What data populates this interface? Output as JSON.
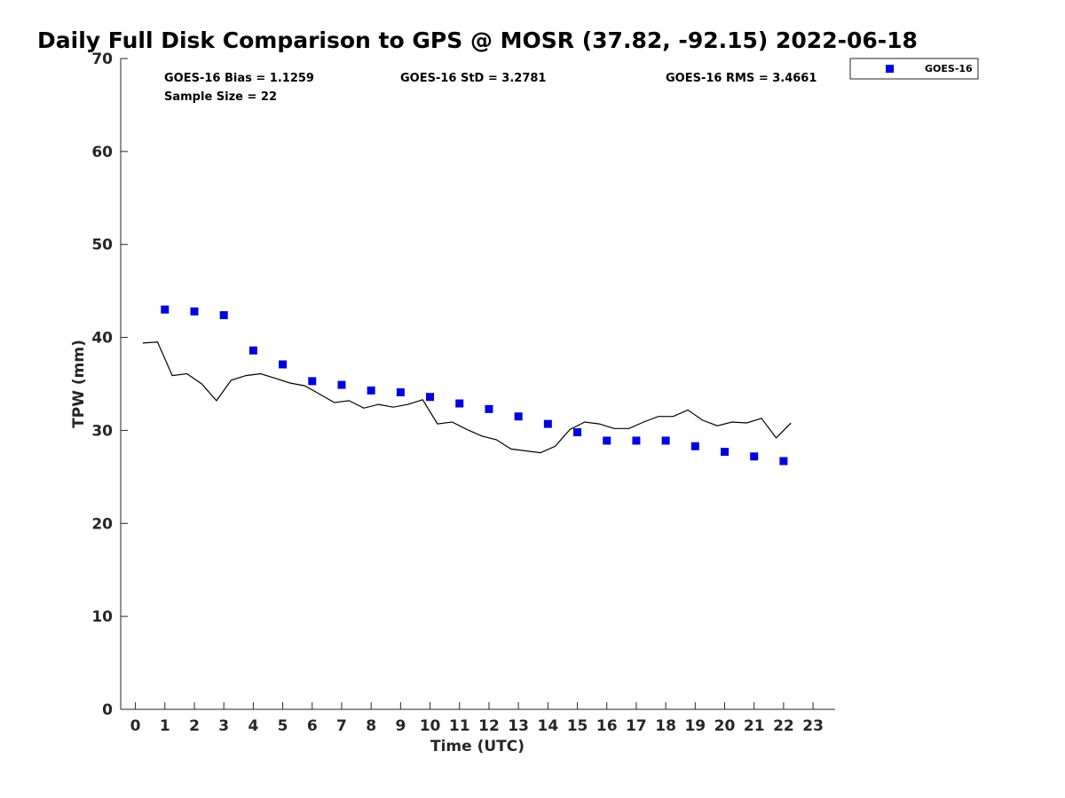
{
  "chart_data": {
    "type": "scatter",
    "title": "Daily Full Disk Comparison to GPS @ MOSR (37.82, -92.15) 2022-06-18",
    "xlabel": "Time (UTC)",
    "ylabel": "TPW (mm)",
    "xlim": [
      -0.5,
      23.75
    ],
    "ylim": [
      0,
      70
    ],
    "x_ticks": [
      0,
      1,
      2,
      3,
      4,
      5,
      6,
      7,
      8,
      9,
      10,
      11,
      12,
      13,
      14,
      15,
      16,
      17,
      18,
      19,
      20,
      21,
      22,
      23
    ],
    "y_ticks": [
      0,
      10,
      20,
      30,
      40,
      50,
      60,
      70
    ],
    "grid": false,
    "legend_position": "outside top-right",
    "stats": {
      "bias": "GOES-16 Bias = 1.1259",
      "std": "GOES-16 StD = 3.2781",
      "rms": "GOES-16 RMS = 3.4661",
      "sample_size": "Sample Size = 22"
    },
    "series": [
      {
        "name": "GOES-16",
        "kind": "marker",
        "color": "#0000dd",
        "x": [
          1,
          2,
          3,
          4,
          5,
          6,
          7,
          8,
          9,
          10,
          11,
          12,
          13,
          14,
          15,
          16,
          17,
          18,
          19,
          20,
          21,
          22
        ],
        "y": [
          43.0,
          42.8,
          42.4,
          38.6,
          37.1,
          35.3,
          34.9,
          34.3,
          34.1,
          33.6,
          32.9,
          32.3,
          31.5,
          30.7,
          29.8,
          28.9,
          28.9,
          28.9,
          28.3,
          27.7,
          27.2,
          26.7
        ]
      },
      {
        "kind": "line",
        "color": "#000000",
        "x": [
          0.25,
          0.75,
          1.25,
          1.75,
          2.25,
          2.75,
          3.25,
          3.75,
          4.25,
          4.75,
          5.25,
          5.75,
          6.25,
          6.75,
          7.25,
          7.75,
          8.25,
          8.75,
          9.25,
          9.75,
          10.25,
          10.75,
          11.25,
          11.75,
          12.25,
          12.75,
          13.25,
          13.75,
          14.25,
          14.75,
          15.25,
          15.75,
          16.25,
          16.75,
          17.25,
          17.75,
          18.25,
          18.75,
          19.25,
          19.75,
          20.25,
          20.75,
          21.25,
          21.75,
          22.25
        ],
        "y": [
          39.4,
          39.5,
          35.9,
          36.1,
          35.0,
          33.2,
          35.4,
          35.9,
          36.1,
          35.6,
          35.1,
          34.8,
          33.9,
          33.0,
          33.2,
          32.4,
          32.8,
          32.5,
          32.8,
          33.3,
          30.7,
          30.9,
          30.1,
          29.4,
          29.0,
          28.0,
          27.8,
          27.6,
          28.3,
          30.1,
          30.9,
          30.7,
          30.2,
          30.2,
          30.9,
          31.5,
          31.5,
          32.2,
          31.1,
          30.5,
          30.9,
          30.8,
          31.3,
          29.2,
          30.8
        ]
      }
    ]
  }
}
